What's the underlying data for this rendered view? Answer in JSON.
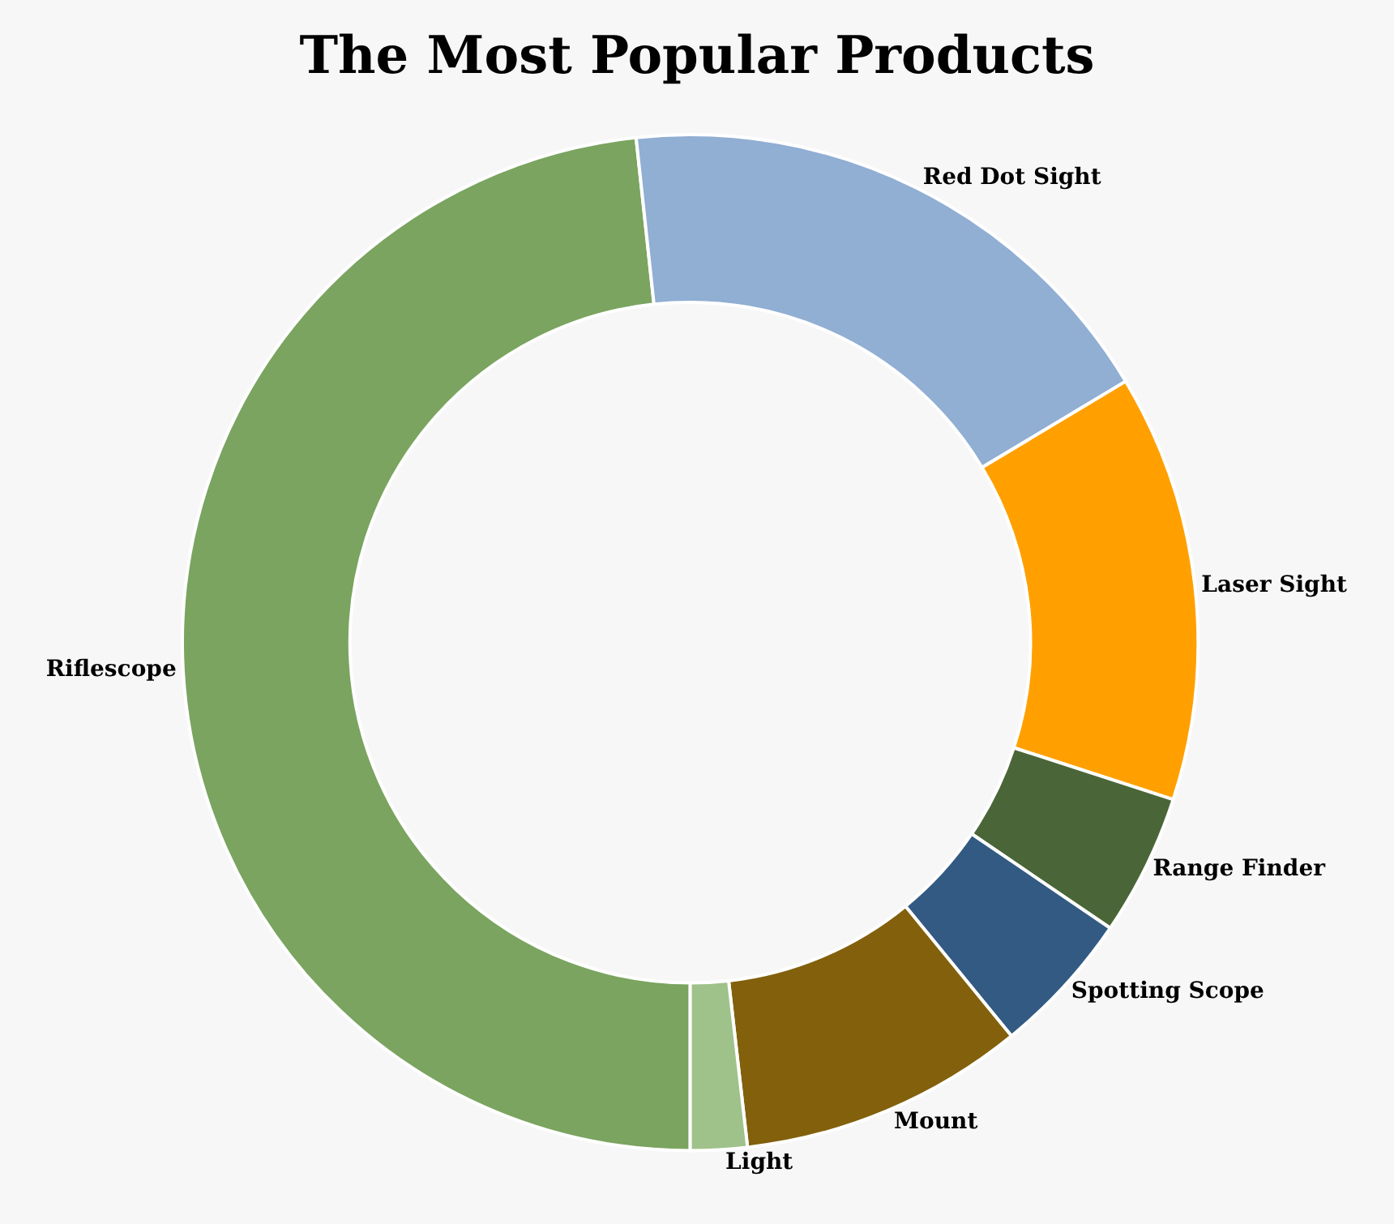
{
  "chart_data": {
    "type": "donut",
    "title": "The Most Popular Products",
    "categories": [
      "Riflescope",
      "Red Dot Sight",
      "Laser Sight",
      "Range Finder",
      "Spotting Scope",
      "Mount",
      "Light"
    ],
    "values": [
      48.3,
      18.1,
      13.6,
      4.5,
      4.6,
      9.1,
      1.8
    ],
    "colors": [
      "#7aa45f",
      "#91aed3",
      "#ffa000",
      "#4a6638",
      "#325a82",
      "#82600c",
      "#9fc28a"
    ],
    "legend": false
  }
}
